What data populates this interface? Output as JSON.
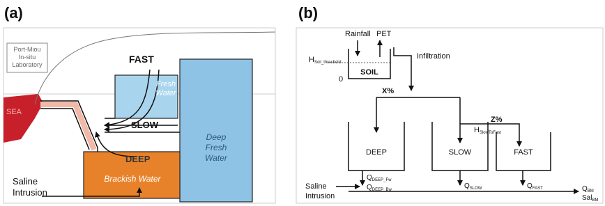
{
  "panel_a": {
    "label": "(a)",
    "lab_box": [
      "Port-Miou",
      "In-situ",
      "Laboratory"
    ],
    "sea": "SEA",
    "fast": "FAST",
    "fresh_water": [
      "Fresh",
      "Water"
    ],
    "slow": "SLOW",
    "deep": "DEEP",
    "brackish_water": "Brackish Water",
    "deep_fresh_water": [
      "Deep",
      "Fresh",
      "Water"
    ],
    "saline_intrusion": [
      "Saline",
      "Intrusion"
    ]
  },
  "panel_b": {
    "label": "(b)",
    "rainfall": "Rainfall",
    "pet": "PET",
    "h_soil": {
      "base": "H",
      "sub": "Soil_threshold"
    },
    "zero": "0",
    "soil": "SOIL",
    "infiltration": "Infiltration",
    "x_pct": "X%",
    "z_pct": "Z%",
    "h_slow_fast": {
      "base": "H",
      "sub": "SlowToFast"
    },
    "deep": "DEEP",
    "slow": "SLOW",
    "fast": "FAST",
    "q_deep_fw": {
      "base": "Q",
      "sub": "DEEP_Fw"
    },
    "q_deep_bw": {
      "base": "Q",
      "sub": "DEEP_Bw"
    },
    "q_slow": {
      "base": "Q",
      "sub": "SLOW"
    },
    "q_fast": {
      "base": "Q",
      "sub": "FAST"
    },
    "q_bm": {
      "base": "Q",
      "sub": "BM"
    },
    "sal_bm": {
      "base": "Sal",
      "sub": "BM"
    },
    "saline_intrusion": [
      "Saline",
      "Intrusion"
    ]
  }
}
